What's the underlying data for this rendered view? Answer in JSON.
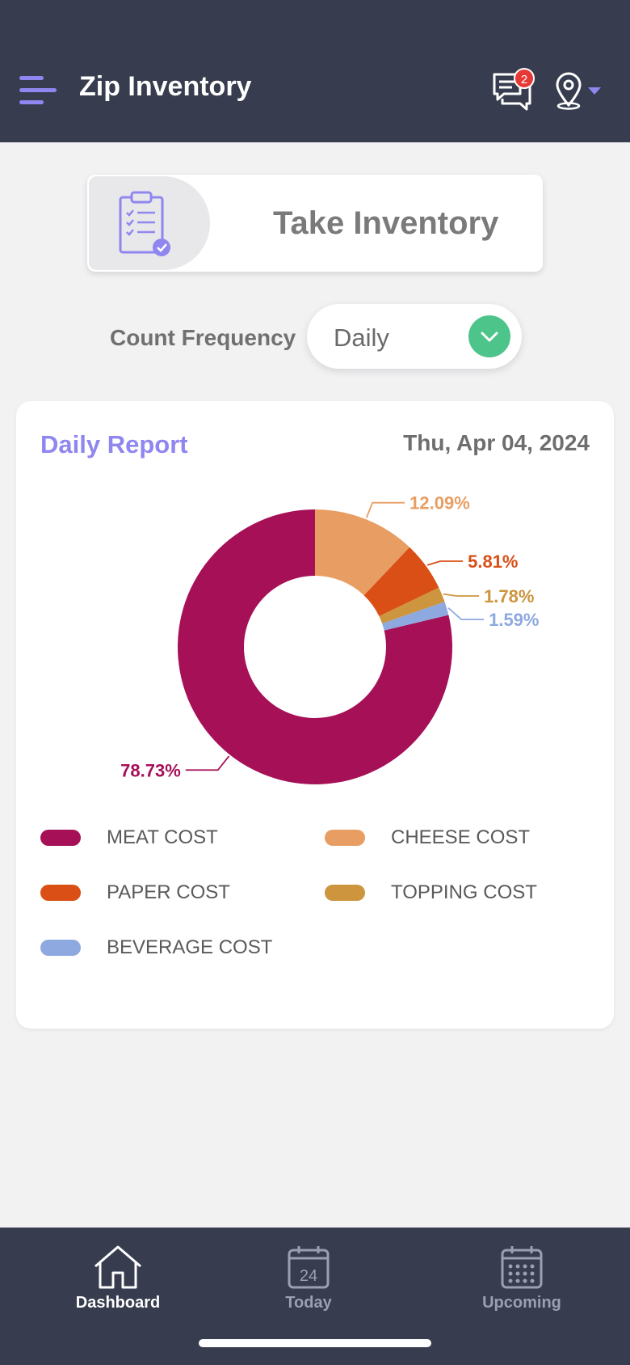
{
  "header": {
    "title": "Zip Inventory",
    "notification_count": "2",
    "icons": {
      "menu": "hamburger-icon",
      "chat": "chat-icon",
      "location": "location-pin-icon"
    }
  },
  "take_inventory": {
    "label": "Take Inventory",
    "icon": "clipboard-check-icon"
  },
  "frequency": {
    "label": "Count Frequency",
    "value": "Daily",
    "accent": "#4dc48a"
  },
  "report": {
    "title": "Daily Report",
    "date": "Thu, Apr 04, 2024"
  },
  "chart_data": {
    "type": "pie",
    "donut": true,
    "categories": [
      "MEAT COST",
      "CHEESE COST",
      "PAPER COST",
      "TOPPING COST",
      "BEVERAGE COST"
    ],
    "values": [
      78.73,
      12.09,
      5.81,
      1.78,
      1.59
    ],
    "labels": [
      "78.73%",
      "12.09%",
      "5.81%",
      "1.78%",
      "1.59%"
    ],
    "colors": [
      "#a51057",
      "#e89e63",
      "#d94f16",
      "#cc953e",
      "#8ea8e0"
    ],
    "legend_position": "bottom"
  },
  "bottom_nav": {
    "items": [
      {
        "label": "Dashboard",
        "icon": "home-icon",
        "active": true
      },
      {
        "label": "Today",
        "icon": "calendar-day-icon",
        "day": "24",
        "active": false
      },
      {
        "label": "Upcoming",
        "icon": "calendar-grid-icon",
        "active": false
      }
    ]
  },
  "colors": {
    "header_bg": "#373d4f",
    "accent_purple": "#8f86f0",
    "badge_red": "#e53935"
  }
}
